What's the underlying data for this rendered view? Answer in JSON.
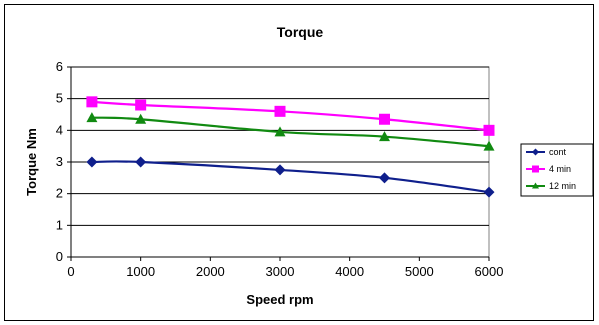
{
  "chart_data": {
    "type": "line",
    "title": "Torque",
    "xlabel": "Speed rpm",
    "ylabel": "Torque Nm",
    "xlim": [
      0,
      6000
    ],
    "ylim": [
      0,
      6
    ],
    "xticks": [
      0,
      1000,
      2000,
      3000,
      4000,
      5000,
      6000
    ],
    "yticks": [
      0,
      1,
      2,
      3,
      4,
      5,
      6
    ],
    "grid": "horizontal",
    "legend_position": "right",
    "series": [
      {
        "name": "cont",
        "color": "#0f1f8c",
        "marker": "diamond",
        "points": [
          [
            300,
            3.0
          ],
          [
            1000,
            3.0
          ],
          [
            3000,
            2.75
          ],
          [
            4500,
            2.5
          ],
          [
            6000,
            2.05
          ]
        ]
      },
      {
        "name": "4 min",
        "color": "#ff00ff",
        "marker": "square",
        "points": [
          [
            300,
            4.9
          ],
          [
            1000,
            4.8
          ],
          [
            3000,
            4.6
          ],
          [
            4500,
            4.35
          ],
          [
            6000,
            4.0
          ]
        ]
      },
      {
        "name": "12 min",
        "color": "#118a11",
        "marker": "triangle",
        "points": [
          [
            300,
            4.4
          ],
          [
            1000,
            4.35
          ],
          [
            3000,
            3.95
          ],
          [
            4500,
            3.8
          ],
          [
            6000,
            3.5
          ]
        ]
      }
    ]
  }
}
